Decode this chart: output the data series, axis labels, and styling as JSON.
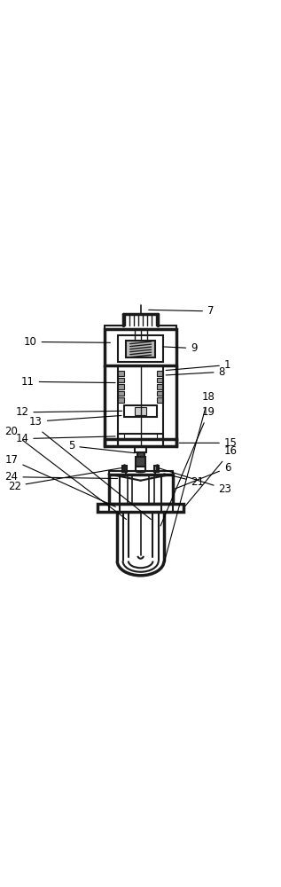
{
  "bg_color": "#ffffff",
  "line_color": "#1a1a1a",
  "line_width": 1.5,
  "thick_line": 2.5,
  "fig_width": 3.17,
  "fig_height": 10.0
}
